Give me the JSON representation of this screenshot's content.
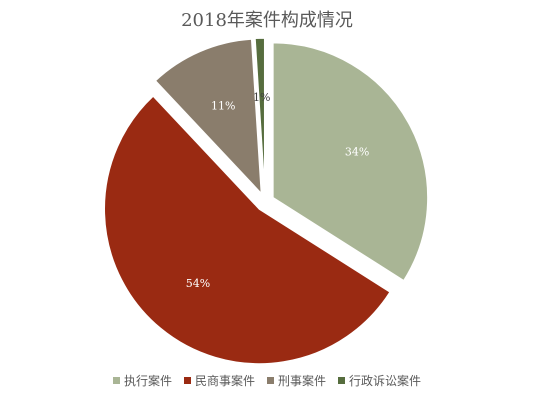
{
  "chart_data": {
    "type": "pie",
    "title": "2018年案件构成情况",
    "categories": [
      "执行案件",
      "民商事案件",
      "刑事案件",
      "行政诉讼案件"
    ],
    "values": [
      34,
      54,
      11,
      1
    ],
    "labels": [
      "34%",
      "54%",
      "11%",
      "1%"
    ],
    "colors": [
      "#A9B595",
      "#9A2A12",
      "#8A7D6C",
      "#566D3E"
    ],
    "label_colors": [
      "#ffffff",
      "#ffffff",
      "#ffffff",
      "#404040"
    ],
    "exploded": true,
    "legend_position": "bottom"
  }
}
